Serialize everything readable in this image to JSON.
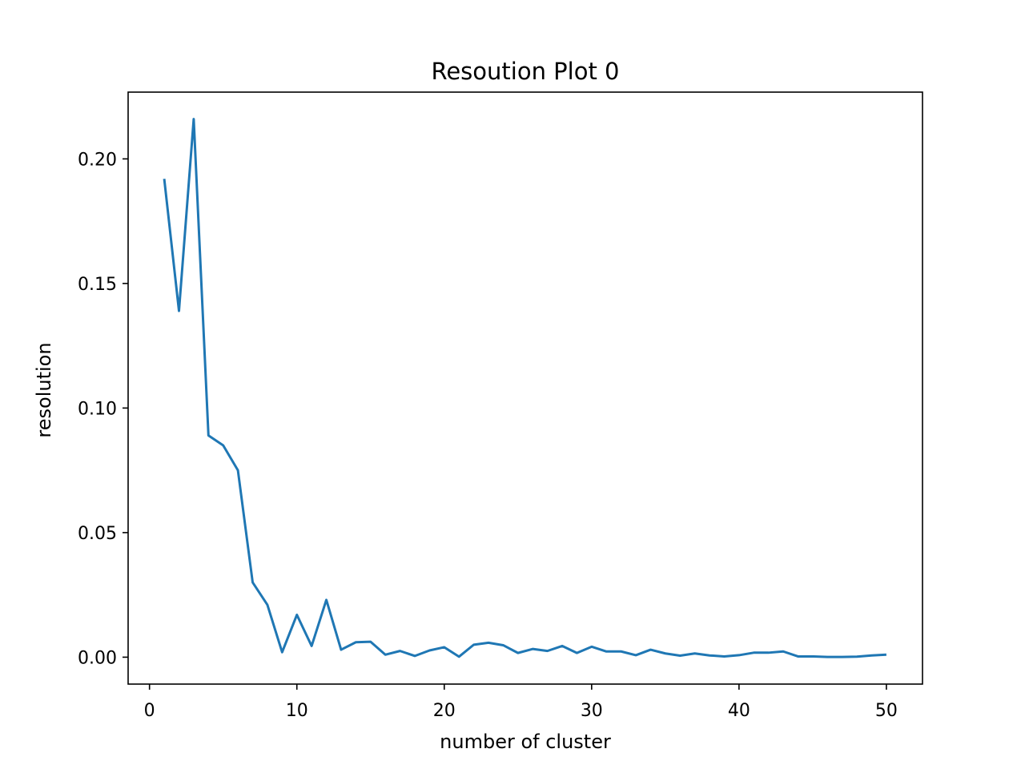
{
  "chart_data": {
    "type": "line",
    "title": "Resoution Plot 0",
    "xlabel": "number of cluster",
    "ylabel": "resolution",
    "xlim": [
      -1.45,
      52.45
    ],
    "ylim": [
      -0.0108,
      0.2268
    ],
    "xticks": [
      0,
      10,
      20,
      30,
      40,
      50
    ],
    "xtick_labels": [
      "0",
      "10",
      "20",
      "30",
      "40",
      "50"
    ],
    "yticks": [
      0.0,
      0.05,
      0.1,
      0.15,
      0.2
    ],
    "ytick_labels": [
      "0.00",
      "0.05",
      "0.10",
      "0.15",
      "0.20"
    ],
    "grid": false,
    "legend": "none",
    "series": [
      {
        "color": "#1f77b4",
        "x": [
          1,
          2,
          3,
          4,
          5,
          6,
          7,
          8,
          9,
          10,
          11,
          12,
          13,
          14,
          15,
          16,
          17,
          18,
          19,
          20,
          21,
          22,
          23,
          24,
          25,
          26,
          27,
          28,
          29,
          30,
          31,
          32,
          33,
          34,
          35,
          36,
          37,
          38,
          39,
          40,
          41,
          42,
          43,
          44,
          45,
          46,
          47,
          48,
          49,
          50
        ],
        "y": [
          0.192,
          0.139,
          0.216,
          0.089,
          0.085,
          0.075,
          0.03,
          0.021,
          0.002,
          0.017,
          0.0045,
          0.023,
          0.003,
          0.006,
          0.0062,
          0.001,
          0.0025,
          0.0005,
          0.0027,
          0.004,
          0.0002,
          0.005,
          0.0058,
          0.0048,
          0.0017,
          0.0033,
          0.0025,
          0.0045,
          0.0017,
          0.0042,
          0.0023,
          0.0023,
          0.0008,
          0.003,
          0.0015,
          0.0006,
          0.0015,
          0.0007,
          0.0003,
          0.0008,
          0.0018,
          0.0018,
          0.0023,
          0.0003,
          0.0003,
          0.0001,
          0.0001,
          0.0002,
          0.0007,
          0.001
        ]
      }
    ]
  }
}
